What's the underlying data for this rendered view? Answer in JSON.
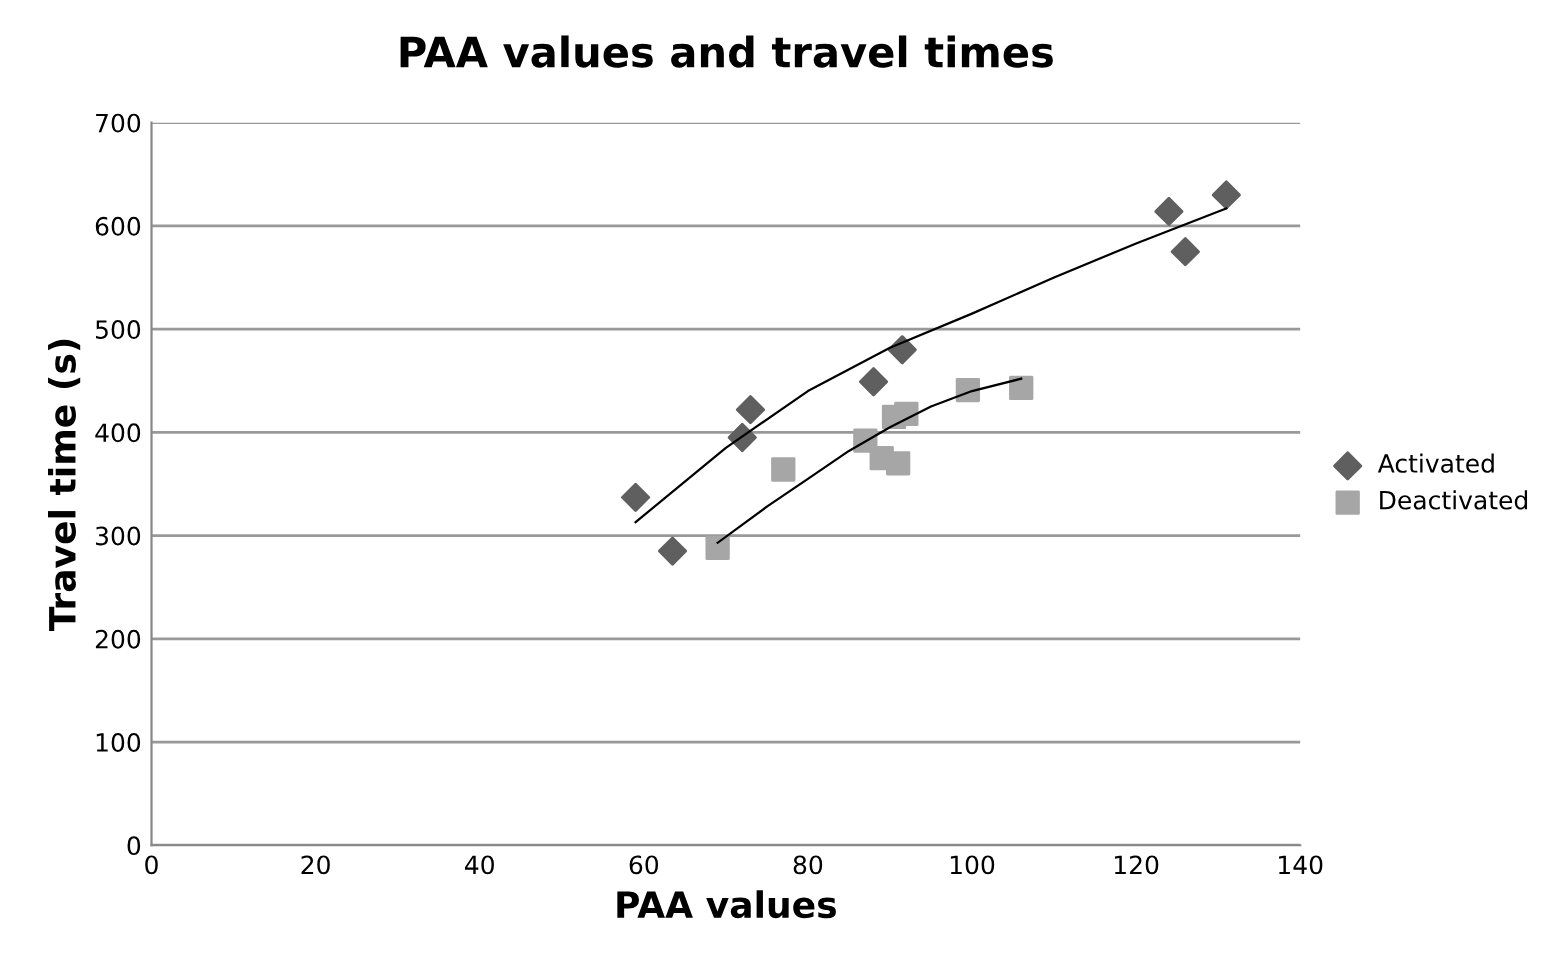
{
  "chart_data": {
    "type": "scatter",
    "title": "PAA values and travel times",
    "xlabel": "PAA values",
    "ylabel": "Travel time (s)",
    "xlim": [
      0,
      140
    ],
    "xticks": [
      0,
      20,
      40,
      60,
      80,
      100,
      120,
      140
    ],
    "ylim": [
      0,
      700
    ],
    "yticks": [
      0,
      100,
      200,
      300,
      400,
      500,
      600,
      700
    ],
    "grid": "y",
    "legend": "right",
    "series": [
      {
        "name": "Activated",
        "color": "#5f5f5f",
        "marker": "diamond",
        "x": [
          59,
          63.5,
          72,
          73,
          88,
          91.5,
          124,
          126,
          131
        ],
        "values": [
          337,
          285,
          395,
          422,
          449,
          480,
          614,
          575,
          630
        ]
      },
      {
        "name": "Deactivated",
        "color": "#a6a6a6",
        "marker": "square",
        "x": [
          69,
          77,
          87,
          89,
          90.5,
          91,
          92,
          99.5,
          106
        ],
        "values": [
          288,
          364,
          392,
          375,
          415,
          370,
          418,
          441,
          443
        ]
      },
      {
        "type": "line",
        "color": "#000000",
        "marker": "none",
        "x": [
          59,
          70,
          80,
          90,
          100,
          110,
          120,
          131
        ],
        "values": [
          313,
          385,
          440,
          482,
          515,
          550,
          583,
          617
        ]
      },
      {
        "type": "line",
        "color": "#000000",
        "marker": "none",
        "x": [
          69,
          75,
          80,
          85,
          90,
          95,
          100,
          106
        ],
        "values": [
          293,
          328,
          355,
          382,
          405,
          425,
          440,
          452
        ]
      }
    ]
  }
}
